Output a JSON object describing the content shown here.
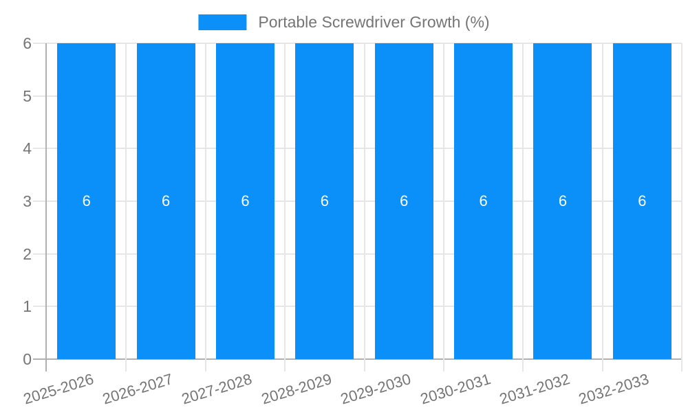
{
  "chart_data": {
    "type": "bar",
    "legend": {
      "label": "Portable Screwdriver Growth (%)",
      "position": "top-center"
    },
    "categories": [
      "2025-2026",
      "2026-2027",
      "2027-2028",
      "2028-2029",
      "2029-2030",
      "2030-2031",
      "2031-2032",
      "2032-2033"
    ],
    "series": [
      {
        "name": "Portable Screwdriver Growth (%)",
        "values": [
          6,
          6,
          6,
          6,
          6,
          6,
          6,
          6
        ]
      }
    ],
    "bar_value_labels": [
      "6",
      "6",
      "6",
      "6",
      "6",
      "6",
      "6",
      "6"
    ],
    "ylim": [
      0,
      6
    ],
    "yticks": [
      0,
      1,
      2,
      3,
      4,
      5,
      6
    ],
    "grid": "horizontal gridlines plus vertical lines at category boundaries, ticks outside axes",
    "x_tick_label_rotation_deg": -17,
    "legend_present": true,
    "colors": {
      "bar": "#0a90f8",
      "bar_value_label": "#ffffff",
      "grid_line": "#e6e6e6",
      "axis_line": "#b0b0b0",
      "tick_label": "#757575",
      "legend_text": "#757575",
      "background": "#ffffff"
    }
  }
}
